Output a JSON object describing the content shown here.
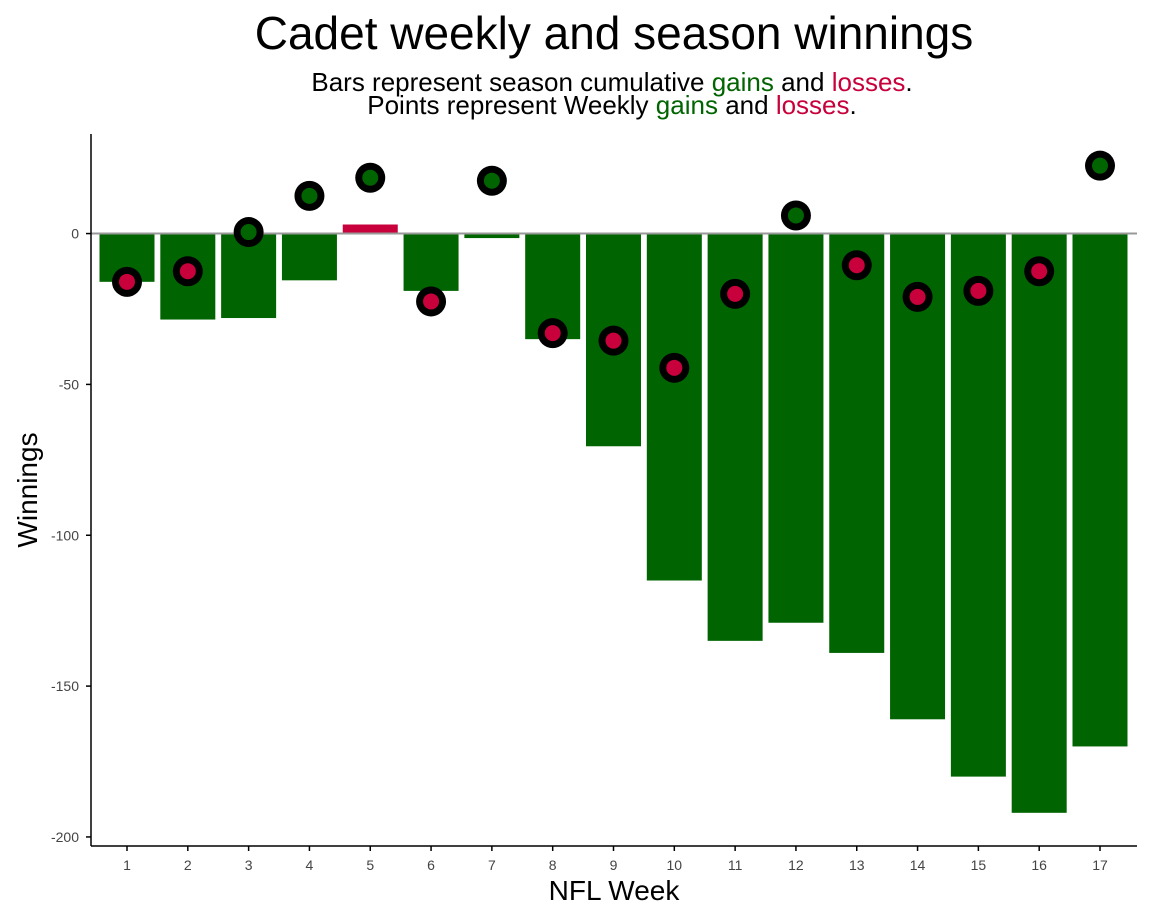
{
  "chart_data": {
    "type": "bar",
    "title": "Cadet weekly and season winnings",
    "subtitle_lines": [
      {
        "prefix": "Bars represent season cumulative",
        "gains": "gains",
        "and": "and",
        "losses": "losses",
        "end": "."
      },
      {
        "prefix": "Points represent Weekly",
        "gains": "gains",
        "and": "and",
        "losses": "losses",
        "end": "."
      }
    ],
    "xlabel": "NFL Week",
    "ylabel": "Winnings",
    "ylim": [
      -203,
      33
    ],
    "yticks": [
      0,
      -50,
      -100,
      -150,
      -200
    ],
    "categories": [
      "1",
      "2",
      "3",
      "4",
      "5",
      "6",
      "7",
      "8",
      "9",
      "10",
      "11",
      "12",
      "13",
      "14",
      "15",
      "16",
      "17"
    ],
    "series": [
      {
        "kind": "bars",
        "values": [
          -16,
          -28.5,
          -28,
          -15.5,
          3,
          -19,
          -1.5,
          -35,
          -70.5,
          -115,
          -135,
          -129,
          -139,
          -161,
          -180,
          -192,
          -170
        ],
        "colors": [
          "#006400",
          "#006400",
          "#006400",
          "#006400",
          "#c8003c",
          "#006400",
          "#006400",
          "#006400",
          "#006400",
          "#006400",
          "#006400",
          "#006400",
          "#006400",
          "#006400",
          "#006400",
          "#006400",
          "#006400"
        ]
      },
      {
        "kind": "points",
        "values": [
          -16,
          -12.5,
          0.5,
          12.5,
          18.5,
          -22.5,
          17.5,
          -33,
          -35.5,
          -44.5,
          -20,
          6,
          -10.5,
          -21,
          -19,
          -12.5,
          22.5
        ],
        "colors": [
          "#c8003c",
          "#c8003c",
          "#006400",
          "#006400",
          "#006400",
          "#c8003c",
          "#006400",
          "#c8003c",
          "#c8003c",
          "#c8003c",
          "#c8003c",
          "#006400",
          "#c8003c",
          "#c8003c",
          "#c8003c",
          "#c8003c",
          "#006400"
        ]
      }
    ],
    "colors": {
      "gain": "#006400",
      "loss": "#c8003c",
      "outline": "#000000",
      "zero_line": "#999999",
      "axis": "#000000",
      "tick_label": "#444444"
    },
    "grid": false,
    "legend": "none"
  }
}
